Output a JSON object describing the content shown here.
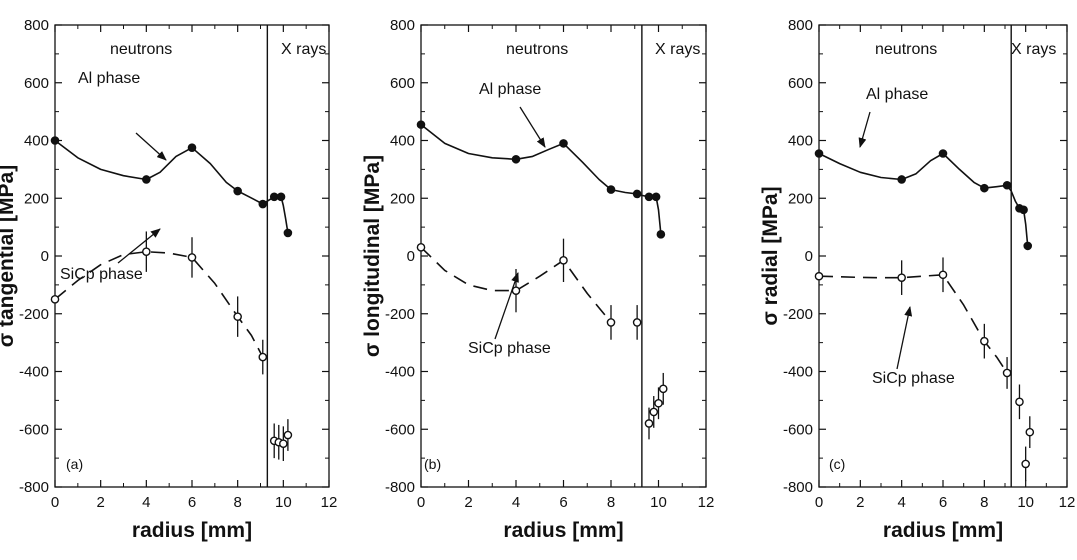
{
  "chart_data": [
    {
      "type": "line",
      "panel_label": "(a)",
      "xlabel": "radius  [mm]",
      "ylabel": "σ tangential  [MPa]",
      "xlim": [
        0,
        12
      ],
      "ylim": [
        -800,
        800
      ],
      "xticks": [
        "0",
        "2",
        "4",
        "6",
        "8",
        "10",
        "12"
      ],
      "yticks": [
        "-800",
        "-600",
        "-400",
        "-200",
        "0",
        "200",
        "400",
        "600",
        "800"
      ],
      "boundary_x": 9.3,
      "regions": {
        "left": "neutrons",
        "right": "X rays"
      },
      "series": [
        {
          "name": "Al phase",
          "marker": "filled-circle",
          "line": "solid",
          "x": [
            0,
            4,
            6,
            8,
            9.1,
            9.6,
            9.9,
            10.2
          ],
          "y": [
            400,
            265,
            375,
            225,
            180,
            205,
            205,
            80
          ],
          "curve_x": [
            0,
            1,
            2,
            3,
            4,
            4.6,
            5.3,
            6,
            6.8,
            7.5,
            8,
            8.5,
            9.1,
            9.3,
            9.5,
            9.6,
            9.9,
            10.0,
            10.1,
            10.2
          ],
          "curve_y": [
            400,
            340,
            300,
            278,
            265,
            290,
            345,
            375,
            320,
            255,
            225,
            205,
            180,
            190,
            200,
            205,
            205,
            175,
            130,
            80
          ]
        },
        {
          "name": "SiCp phase",
          "marker": "open-circle",
          "line": "dashed",
          "x": [
            0,
            4,
            6,
            8,
            9.1,
            9.6,
            9.8,
            10.0,
            10.2
          ],
          "y": [
            -150,
            15,
            -5,
            -210,
            -350,
            -640,
            -645,
            -650,
            -620
          ],
          "err": [
            0,
            70,
            70,
            70,
            60,
            60,
            60,
            60,
            55
          ],
          "curve_x": [
            0,
            1,
            2,
            3,
            4,
            5,
            6,
            7,
            8,
            8.6,
            9.1,
            9.3
          ],
          "curve_y": [
            -150,
            -85,
            -30,
            5,
            15,
            10,
            -5,
            -95,
            -210,
            -275,
            -350,
            -370
          ]
        }
      ],
      "annotations": [
        {
          "text": "Al phase",
          "target_series": "Al phase"
        },
        {
          "text": "SiCp phase",
          "target_series": "SiCp phase"
        }
      ]
    },
    {
      "type": "line",
      "panel_label": "(b)",
      "xlabel": "radius  [mm]",
      "ylabel": "σ longitudinal  [MPa]",
      "xlim": [
        0,
        12
      ],
      "ylim": [
        -800,
        800
      ],
      "xticks": [
        "0",
        "2",
        "4",
        "6",
        "8",
        "10",
        "12"
      ],
      "yticks": [
        "-800",
        "-600",
        "-400",
        "-200",
        "0",
        "200",
        "400",
        "600",
        "800"
      ],
      "boundary_x": 9.3,
      "regions": {
        "left": "neutrons",
        "right": "X rays"
      },
      "series": [
        {
          "name": "Al phase",
          "marker": "filled-circle",
          "line": "solid",
          "x": [
            0,
            4,
            6,
            8,
            9.1,
            9.6,
            9.9,
            10.1
          ],
          "y": [
            455,
            335,
            390,
            230,
            215,
            205,
            205,
            75
          ],
          "curve_x": [
            0,
            1,
            2,
            3,
            4,
            4.7,
            5.4,
            6,
            6.8,
            7.5,
            8,
            8.6,
            9.1,
            9.3,
            9.6,
            9.9,
            10.0,
            10.1
          ],
          "curve_y": [
            455,
            390,
            355,
            340,
            335,
            345,
            370,
            390,
            325,
            265,
            230,
            220,
            215,
            210,
            205,
            205,
            160,
            75
          ]
        },
        {
          "name": "SiCp phase",
          "marker": "open-circle",
          "line": "dashed",
          "x": [
            0,
            4,
            6,
            8,
            9.1,
            9.6,
            9.8,
            10.0,
            10.2
          ],
          "y": [
            30,
            -120,
            -15,
            -230,
            -230,
            -580,
            -540,
            -510,
            -460
          ],
          "err": [
            0,
            75,
            75,
            60,
            60,
            55,
            55,
            55,
            55
          ],
          "curve_x": [
            0,
            1,
            2,
            3,
            4,
            5,
            6,
            7,
            8
          ],
          "curve_y": [
            30,
            -50,
            -100,
            -120,
            -120,
            -70,
            -15,
            -130,
            -230
          ]
        }
      ],
      "annotations": [
        {
          "text": "Al phase",
          "target_series": "Al phase"
        },
        {
          "text": "SiCp phase",
          "target_series": "SiCp phase"
        }
      ]
    },
    {
      "type": "line",
      "panel_label": "(c)",
      "xlabel": "radius  [mm]",
      "ylabel": "σ radial  [MPa]",
      "xlim": [
        0,
        12
      ],
      "ylim": [
        -800,
        800
      ],
      "xticks": [
        "0",
        "2",
        "4",
        "6",
        "8",
        "10",
        "12"
      ],
      "yticks": [
        "-800",
        "-600",
        "-400",
        "-200",
        "0",
        "200",
        "400",
        "600",
        "800"
      ],
      "boundary_x": 9.3,
      "regions": {
        "left": "neutrons",
        "right": "X rays"
      },
      "series": [
        {
          "name": "Al phase",
          "marker": "filled-circle",
          "line": "solid",
          "x": [
            0,
            4,
            6,
            8,
            9.1,
            9.7,
            9.9,
            10.1
          ],
          "y": [
            355,
            265,
            355,
            235,
            245,
            165,
            160,
            35
          ],
          "curve_x": [
            0,
            1,
            2,
            3,
            4,
            4.7,
            5.4,
            6,
            6.8,
            7.5,
            8,
            8.6,
            9.1,
            9.3,
            9.5,
            9.7,
            9.9,
            10.0,
            10.1
          ],
          "curve_y": [
            355,
            320,
            290,
            272,
            265,
            285,
            330,
            355,
            300,
            255,
            235,
            240,
            245,
            225,
            190,
            165,
            160,
            110,
            35
          ]
        },
        {
          "name": "SiCp phase",
          "marker": "open-circle",
          "line": "dashed",
          "x": [
            0,
            4,
            6,
            8,
            9.1,
            9.7,
            10.0,
            10.2
          ],
          "y": [
            -70,
            -75,
            -65,
            -295,
            -405,
            -505,
            -720,
            -610
          ],
          "err": [
            0,
            60,
            60,
            60,
            55,
            60,
            60,
            55
          ],
          "curve_x": [
            0,
            1,
            2,
            3,
            4,
            5,
            6,
            7,
            8,
            8.6,
            9.1
          ],
          "curve_y": [
            -70,
            -72,
            -74,
            -75,
            -75,
            -70,
            -65,
            -170,
            -295,
            -350,
            -405
          ]
        }
      ],
      "annotations": [
        {
          "text": "Al phase",
          "target_series": "Al phase"
        },
        {
          "text": "SiCp phase",
          "target_series": "SiCp phase"
        }
      ]
    }
  ]
}
